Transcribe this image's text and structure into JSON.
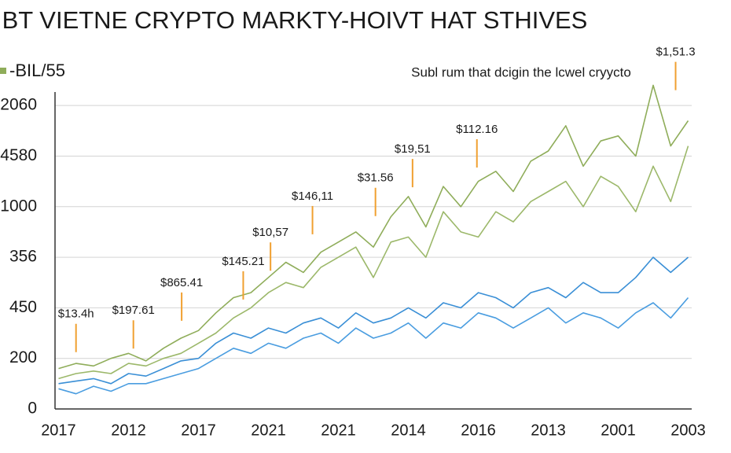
{
  "chart_data": {
    "type": "line",
    "title": "IBT VIETNE CRYPTO MARKTY-HOIVT HAT STHIVES",
    "legend_label": "-BIL/55",
    "annotation": "Subl rum that dcigin the lcwel cryycto",
    "categories": [
      "2017",
      "2012",
      "2017",
      "2021",
      "2021",
      "2014",
      "2016",
      "2013",
      "2001",
      "2003"
    ],
    "x": [
      0,
      0.25,
      0.5,
      0.75,
      1,
      1.25,
      1.5,
      1.75,
      2,
      2.25,
      2.5,
      2.75,
      3,
      3.25,
      3.5,
      3.75,
      4,
      4.25,
      4.5,
      4.75,
      5,
      5.25,
      5.5,
      5.75,
      6,
      6.25,
      6.5,
      6.75,
      7,
      7.25,
      7.5,
      7.75,
      8,
      8.25,
      8.5,
      8.75,
      9
    ],
    "xlim": [
      -0.05,
      9.05
    ],
    "ylim": [
      0,
      7.2
    ],
    "yticks": [
      {
        "value": 0,
        "label": "0"
      },
      {
        "value": 1,
        "label": "200"
      },
      {
        "value": 2,
        "label": "450"
      },
      {
        "value": 3,
        "label": "356"
      },
      {
        "value": 4,
        "label": "1000"
      },
      {
        "value": 5,
        "label": "4580"
      },
      {
        "value": 6,
        "label": "2060"
      }
    ],
    "grid": true,
    "series": [
      {
        "name": "-BIL/55",
        "color": "#8fad5a",
        "values": [
          0.8,
          0.9,
          0.85,
          1.0,
          1.1,
          0.95,
          1.2,
          1.4,
          1.55,
          1.9,
          2.2,
          2.3,
          2.6,
          2.9,
          2.7,
          3.1,
          3.3,
          3.5,
          3.2,
          3.8,
          4.2,
          3.6,
          4.4,
          4.0,
          4.5,
          4.7,
          4.3,
          4.9,
          5.1,
          5.6,
          4.8,
          5.3,
          5.4,
          5.0,
          6.4,
          5.2,
          5.7
        ]
      },
      {
        "color": "#9cb86a",
        "values": [
          0.6,
          0.7,
          0.75,
          0.7,
          0.9,
          0.85,
          1.0,
          1.1,
          1.3,
          1.5,
          1.8,
          2.0,
          2.3,
          2.5,
          2.4,
          2.8,
          3.0,
          3.2,
          2.6,
          3.3,
          3.4,
          3.0,
          3.9,
          3.5,
          3.4,
          3.9,
          3.7,
          4.1,
          4.3,
          4.5,
          4.0,
          4.6,
          4.4,
          3.9,
          4.8,
          4.1,
          5.2
        ]
      },
      {
        "color": "#3a8fd6",
        "values": [
          0.5,
          0.55,
          0.6,
          0.5,
          0.7,
          0.65,
          0.8,
          0.95,
          1.0,
          1.3,
          1.5,
          1.4,
          1.6,
          1.5,
          1.7,
          1.8,
          1.6,
          1.9,
          1.7,
          1.8,
          2.0,
          1.8,
          2.1,
          2.0,
          2.3,
          2.2,
          2.0,
          2.3,
          2.4,
          2.2,
          2.5,
          2.3,
          2.3,
          2.6,
          3.0,
          2.7,
          3.0
        ]
      },
      {
        "color": "#4a9de0",
        "values": [
          0.4,
          0.3,
          0.45,
          0.35,
          0.5,
          0.5,
          0.6,
          0.7,
          0.8,
          1.0,
          1.2,
          1.1,
          1.3,
          1.2,
          1.4,
          1.5,
          1.3,
          1.6,
          1.4,
          1.5,
          1.7,
          1.4,
          1.7,
          1.6,
          1.9,
          1.8,
          1.6,
          1.8,
          2.0,
          1.7,
          1.9,
          1.8,
          1.6,
          1.9,
          2.1,
          1.8,
          2.2
        ]
      }
    ],
    "annotation_color": "#f0a030",
    "point_labels": [
      {
        "text": "$13.4h",
        "x": 0.25,
        "y": 1.87
      },
      {
        "text": "$197.61",
        "x": 1.07,
        "y": 1.94
      },
      {
        "text": "$865.41",
        "x": 1.76,
        "y": 2.49
      },
      {
        "text": "$145.21",
        "x": 2.64,
        "y": 2.91
      },
      {
        "text": "$10,57",
        "x": 3.03,
        "y": 3.48
      },
      {
        "text": "$146,11",
        "x": 3.63,
        "y": 4.2
      },
      {
        "text": "$31.56",
        "x": 4.53,
        "y": 4.56
      },
      {
        "text": "$19,51",
        "x": 5.06,
        "y": 5.13
      },
      {
        "text": "$112.16",
        "x": 5.98,
        "y": 5.52
      },
      {
        "text": "$1,51.3",
        "x": 8.82,
        "y": 7.05
      }
    ]
  }
}
